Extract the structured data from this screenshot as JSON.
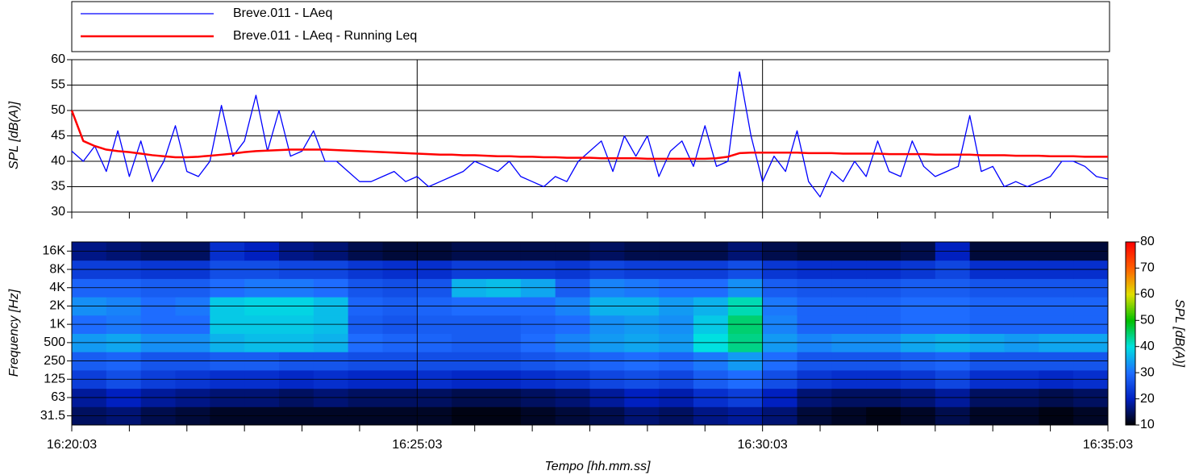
{
  "chart_data": [
    {
      "type": "line",
      "ylabel": "SPL [dB(A)]",
      "x": [
        "16:20:03",
        "16:20:13",
        "16:20:23",
        "16:20:33",
        "16:20:43",
        "16:20:53",
        "16:21:03",
        "16:21:13",
        "16:21:23",
        "16:21:33",
        "16:21:43",
        "16:21:53",
        "16:22:03",
        "16:22:13",
        "16:22:23",
        "16:22:33",
        "16:22:43",
        "16:22:53",
        "16:23:03",
        "16:23:13",
        "16:23:23",
        "16:23:33",
        "16:23:43",
        "16:23:53",
        "16:24:03",
        "16:24:13",
        "16:24:23",
        "16:24:33",
        "16:24:43",
        "16:24:53",
        "16:25:03",
        "16:25:13",
        "16:25:23",
        "16:25:33",
        "16:25:43",
        "16:25:53",
        "16:26:03",
        "16:26:13",
        "16:26:23",
        "16:26:33",
        "16:26:43",
        "16:26:53",
        "16:27:03",
        "16:27:13",
        "16:27:23",
        "16:27:33",
        "16:27:43",
        "16:27:53",
        "16:28:03",
        "16:28:13",
        "16:28:23",
        "16:28:33",
        "16:28:43",
        "16:28:53",
        "16:29:03",
        "16:29:13",
        "16:29:23",
        "16:29:33",
        "16:29:43",
        "16:29:53",
        "16:30:03",
        "16:30:13",
        "16:30:23",
        "16:30:33",
        "16:30:43",
        "16:30:53",
        "16:31:03",
        "16:31:13",
        "16:31:23",
        "16:31:33",
        "16:31:43",
        "16:31:53",
        "16:32:03",
        "16:32:13",
        "16:32:23",
        "16:32:33",
        "16:32:43",
        "16:32:53",
        "16:33:03",
        "16:33:13",
        "16:33:23",
        "16:33:33",
        "16:33:43",
        "16:33:53",
        "16:34:03",
        "16:34:13",
        "16:34:23",
        "16:34:33",
        "16:34:43",
        "16:34:53",
        "16:35:03"
      ],
      "series": [
        {
          "name": "Breve.011 - LAeq",
          "color": "#0000ff",
          "width": 1.3,
          "values": [
            42,
            40,
            43,
            38,
            46,
            37,
            44,
            36,
            40,
            47,
            38,
            37,
            40,
            51,
            41,
            44,
            53,
            42,
            50,
            41,
            42,
            46,
            40,
            40,
            38,
            36,
            36,
            37,
            38,
            36,
            37,
            35,
            36,
            37,
            38,
            40,
            39,
            38,
            40,
            37,
            36,
            35,
            37,
            36,
            40,
            42,
            44,
            38,
            45,
            41,
            45,
            37,
            42,
            44,
            39,
            47,
            39,
            40,
            57.6,
            45,
            36,
            41,
            38,
            46,
            36,
            33,
            38,
            36,
            40,
            37,
            44,
            38,
            37,
            44,
            39,
            37,
            38,
            39,
            49,
            38,
            39,
            35,
            36,
            35,
            36,
            37,
            40,
            40,
            39,
            37,
            36.5
          ]
        },
        {
          "name": "Breve.011 - LAeq - Running Leq",
          "color": "#ff0000",
          "width": 2.5,
          "values": [
            50,
            44,
            43,
            42.3,
            42,
            41.8,
            41.5,
            41.2,
            41,
            40.8,
            40.8,
            40.9,
            41.1,
            41.3,
            41.5,
            41.8,
            42,
            42.1,
            42.2,
            42.3,
            42.3,
            42.3,
            42.3,
            42.2,
            42.1,
            42,
            41.9,
            41.8,
            41.7,
            41.6,
            41.5,
            41.4,
            41.3,
            41.3,
            41.2,
            41.2,
            41.1,
            41,
            41,
            40.9,
            40.9,
            40.8,
            40.8,
            40.7,
            40.7,
            40.7,
            40.6,
            40.6,
            40.6,
            40.6,
            40.5,
            40.5,
            40.5,
            40.5,
            40.5,
            40.5,
            40.6,
            40.9,
            41.6,
            41.7,
            41.7,
            41.7,
            41.7,
            41.7,
            41.6,
            41.6,
            41.6,
            41.5,
            41.5,
            41.5,
            41.5,
            41.4,
            41.4,
            41.4,
            41.4,
            41.3,
            41.3,
            41.3,
            41.3,
            41.2,
            41.2,
            41.2,
            41.1,
            41.1,
            41.1,
            41,
            41,
            41,
            40.9,
            40.9,
            40.9
          ]
        }
      ],
      "xlim": [
        "16:20:03",
        "16:35:03"
      ],
      "xticks": [
        "16:20:03",
        "16:25:03",
        "16:30:03",
        "16:35:03"
      ],
      "xminorticks": [
        "16:20:03",
        "16:20:53",
        "16:21:43",
        "16:22:33",
        "16:23:23",
        "16:24:13",
        "16:25:03",
        "16:25:53",
        "16:26:43",
        "16:27:33",
        "16:28:23",
        "16:29:13",
        "16:30:03",
        "16:30:53",
        "16:31:43",
        "16:32:33",
        "16:33:23",
        "16:34:13",
        "16:35:03"
      ],
      "ylim": [
        30,
        60
      ],
      "yticks": [
        30,
        35,
        40,
        45,
        50,
        55,
        60
      ],
      "grid": true
    },
    {
      "type": "heatmap",
      "xlabel": "Tempo [hh.mm.ss]",
      "ylabel": "Frequency [Hz]",
      "zlabel": "SPL [dB(A)]",
      "x": [
        "16:20:03",
        "16:20:33",
        "16:21:03",
        "16:21:33",
        "16:22:03",
        "16:22:33",
        "16:23:03",
        "16:23:33",
        "16:24:03",
        "16:24:33",
        "16:25:03",
        "16:25:33",
        "16:26:03",
        "16:26:33",
        "16:27:03",
        "16:27:33",
        "16:28:03",
        "16:28:33",
        "16:29:03",
        "16:29:33",
        "16:30:03",
        "16:30:33",
        "16:31:03",
        "16:31:33",
        "16:32:03",
        "16:32:33",
        "16:33:03",
        "16:33:33",
        "16:34:03",
        "16:34:33"
      ],
      "categories": [
        "31.5",
        "63",
        "125",
        "250",
        "500",
        "1K",
        "2K",
        "4K",
        "8K",
        "16K"
      ],
      "values": [
        [
          15,
          16,
          14,
          13,
          12,
          12,
          12,
          12,
          12,
          12,
          12,
          11,
          11,
          12,
          13,
          14,
          16,
          15,
          17,
          18,
          16,
          13,
          12,
          11,
          12,
          14,
          12,
          12,
          11,
          12
        ],
        [
          18,
          20,
          18,
          17,
          16,
          16,
          15,
          16,
          15,
          15,
          15,
          14,
          14,
          15,
          16,
          18,
          20,
          19,
          22,
          24,
          20,
          16,
          15,
          15,
          16,
          18,
          15,
          15,
          14,
          15
        ],
        [
          24,
          26,
          24,
          23,
          22,
          22,
          21,
          22,
          21,
          21,
          22,
          21,
          21,
          22,
          23,
          25,
          26,
          25,
          28,
          30,
          26,
          23,
          22,
          22,
          23,
          25,
          22,
          22,
          21,
          22
        ],
        [
          28,
          29,
          27,
          27,
          28,
          28,
          27,
          27,
          26,
          26,
          26,
          26,
          26,
          27,
          28,
          29,
          30,
          29,
          31,
          34,
          30,
          27,
          27,
          27,
          28,
          29,
          27,
          27,
          27,
          27
        ],
        [
          34,
          35,
          33,
          33,
          36,
          37,
          37,
          36,
          30,
          29,
          29,
          28,
          28,
          30,
          32,
          34,
          35,
          34,
          40,
          44,
          34,
          32,
          33,
          33,
          35,
          36,
          35,
          34,
          35,
          35
        ],
        [
          30,
          31,
          30,
          30,
          38,
          38,
          38,
          37,
          28,
          27,
          28,
          28,
          28,
          29,
          30,
          33,
          34,
          33,
          38,
          45,
          32,
          29,
          29,
          29,
          30,
          30,
          29,
          29,
          29,
          29
        ],
        [
          33,
          32,
          30,
          31,
          38,
          39,
          39,
          37,
          29,
          28,
          29,
          30,
          30,
          30,
          32,
          36,
          36,
          34,
          36,
          42,
          31,
          29,
          29,
          29,
          30,
          30,
          29,
          29,
          29,
          29
        ],
        [
          29,
          29,
          28,
          28,
          30,
          31,
          31,
          30,
          27,
          26,
          27,
          36,
          37,
          35,
          28,
          32,
          31,
          30,
          30,
          33,
          28,
          27,
          27,
          27,
          28,
          28,
          27,
          27,
          27,
          27
        ],
        [
          24,
          24,
          23,
          23,
          26,
          26,
          25,
          25,
          23,
          22,
          22,
          24,
          24,
          24,
          23,
          25,
          24,
          24,
          24,
          26,
          23,
          22,
          22,
          22,
          23,
          25,
          22,
          22,
          22,
          22
        ],
        [
          17,
          16,
          15,
          15,
          22,
          20,
          17,
          16,
          14,
          13,
          13,
          14,
          14,
          14,
          14,
          15,
          14,
          14,
          14,
          16,
          14,
          13,
          13,
          13,
          14,
          20,
          13,
          13,
          13,
          13
        ]
      ],
      "xlim": [
        "16:20:03",
        "16:35:03"
      ],
      "xticks": [
        "16:20:03",
        "16:25:03",
        "16:30:03",
        "16:35:03"
      ],
      "xminorticks": [
        "16:20:03",
        "16:20:53",
        "16:21:43",
        "16:22:33",
        "16:23:23",
        "16:24:13",
        "16:25:03",
        "16:25:53",
        "16:26:43",
        "16:27:33",
        "16:28:23",
        "16:29:13",
        "16:30:03",
        "16:30:53",
        "16:31:43",
        "16:32:33",
        "16:33:23",
        "16:34:13",
        "16:35:03"
      ],
      "zlim": [
        10,
        80
      ],
      "zticks": [
        10,
        20,
        30,
        40,
        50,
        60,
        70,
        80
      ],
      "colors": [
        "#000000",
        "#0020c0",
        "#1e6cff",
        "#00e0e0",
        "#00c000",
        "#e0e000",
        "#ff6000",
        "#ff0000"
      ],
      "grid": true
    }
  ]
}
